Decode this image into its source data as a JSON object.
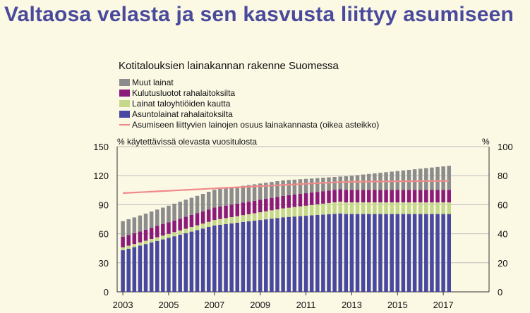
{
  "slide": {
    "title": "Valtaosa velasta ja sen kasvusta liittyy asumiseen"
  },
  "chart_data": {
    "type": "bar",
    "subtype": "stacked-bar-with-line",
    "title": "Kotitalouksien lainakannan rakenne Suomessa",
    "left_axis_label": "% käytettävissä olevasta vuositulosta",
    "right_axis_label": "%",
    "ylim_left": [
      0,
      150
    ],
    "yticks_left": [
      0,
      30,
      60,
      90,
      120,
      150
    ],
    "ylim_right": [
      0,
      100
    ],
    "yticks_right": [
      0,
      20,
      40,
      60,
      80,
      100
    ],
    "x_tick_labels": [
      "2003",
      "2005",
      "2007",
      "2009",
      "2011",
      "2013",
      "2015",
      "2017"
    ],
    "x_range": [
      2002.75,
      2019.0
    ],
    "grid": true,
    "legend_position": "top-left",
    "colors": {
      "asuntolainat": "#4848a0",
      "taloyhtio": "#c6d98a",
      "kulutus": "#8b1a7a",
      "muut": "#8c8c8c",
      "line": "#f08a8a",
      "grid": "#bdbdbd"
    },
    "legend": [
      {
        "label": "Muut lainat",
        "key": "muut"
      },
      {
        "label": "Kulutusluotot rahalaitoksilta",
        "key": "kulutus"
      },
      {
        "label": "Lainat taloyhtiöiden kautta",
        "key": "taloyhtio"
      },
      {
        "label": "Asuntolainat rahalaitoksilta",
        "key": "asuntolainat"
      },
      {
        "label": "Asumiseen liittyvien lainojen osuus lainakannasta (oikea asteikko)",
        "key": "line"
      }
    ],
    "x": [
      2003.0,
      2003.25,
      2003.5,
      2003.75,
      2004.0,
      2004.25,
      2004.5,
      2004.75,
      2005.0,
      2005.25,
      2005.5,
      2005.75,
      2006.0,
      2006.25,
      2006.5,
      2006.75,
      2007.0,
      2007.25,
      2007.5,
      2007.75,
      2008.0,
      2008.25,
      2008.5,
      2008.75,
      2009.0,
      2009.25,
      2009.5,
      2009.75,
      2010.0,
      2010.25,
      2010.5,
      2010.75,
      2011.0,
      2011.25,
      2011.5,
      2011.75,
      2012.0,
      2012.25,
      2012.5,
      2012.75,
      2013.0,
      2013.25,
      2013.5,
      2013.75,
      2014.0,
      2014.25,
      2014.5,
      2014.75,
      2015.0,
      2015.25,
      2015.5,
      2015.75,
      2016.0,
      2016.25,
      2016.5,
      2016.75,
      2017.0,
      2017.25
    ],
    "series": [
      {
        "key": "asuntolainat",
        "name": "Asuntolainat rahalaitoksilta",
        "values": [
          43.0,
          44.6,
          46.2,
          47.8,
          49.4,
          51.0,
          52.6,
          54.2,
          55.8,
          57.4,
          59.0,
          60.6,
          62.2,
          63.8,
          65.4,
          67.0,
          68.6,
          69.3,
          70.0,
          70.7,
          71.4,
          72.1,
          72.8,
          73.5,
          74.2,
          74.9,
          75.6,
          76.3,
          77.0,
          77.4,
          77.8,
          78.2,
          78.6,
          79.0,
          79.4,
          79.8,
          80.2,
          80.6,
          81.0,
          80.4,
          80.4,
          80.4,
          80.4,
          80.4,
          80.4,
          80.4,
          80.4,
          80.4,
          80.4,
          80.4,
          80.4,
          80.4,
          80.4,
          80.4,
          80.4,
          80.4,
          80.4,
          80.4
        ]
      },
      {
        "key": "taloyhtio",
        "name": "Lainat taloyhtiöiden kautta",
        "values": [
          3.0,
          3.1,
          3.2,
          3.3,
          3.4,
          3.6,
          3.8,
          3.9,
          4.1,
          4.3,
          4.4,
          4.6,
          4.8,
          4.9,
          5.1,
          5.3,
          5.6,
          5.9,
          6.2,
          6.5,
          6.8,
          7.1,
          7.4,
          7.7,
          8.0,
          8.3,
          8.6,
          8.9,
          9.2,
          9.5,
          9.8,
          10.1,
          10.4,
          10.7,
          11.0,
          11.3,
          11.6,
          11.9,
          12.2,
          12.0,
          12.0,
          12.0,
          12.0,
          12.0,
          12.0,
          12.0,
          12.0,
          12.0,
          12.0,
          12.0,
          12.0,
          12.0,
          12.0,
          12.0,
          12.0,
          12.0,
          12.0,
          12.0
        ]
      },
      {
        "key": "kulutus",
        "name": "Kulutusluotot rahalaitoksilta",
        "values": [
          11.0,
          11.1,
          11.2,
          11.3,
          11.4,
          11.6,
          11.7,
          11.8,
          11.9,
          12.0,
          12.2,
          12.3,
          12.4,
          12.5,
          12.6,
          12.8,
          12.9,
          12.9,
          12.9,
          12.9,
          12.9,
          12.9,
          12.9,
          12.9,
          12.9,
          12.9,
          12.9,
          12.9,
          12.9,
          12.9,
          12.9,
          12.9,
          12.9,
          12.9,
          12.9,
          12.9,
          12.9,
          12.9,
          12.9,
          13.0,
          13.0,
          13.0,
          13.0,
          13.0,
          13.0,
          13.0,
          13.0,
          13.0,
          13.0,
          13.0,
          13.0,
          13.0,
          13.0,
          13.0,
          13.0,
          13.0,
          13.0,
          13.0
        ]
      },
      {
        "key": "muut",
        "name": "Muut lainat",
        "values": [
          16.0,
          16.2,
          16.3,
          16.5,
          16.6,
          16.8,
          16.9,
          17.1,
          17.2,
          17.4,
          17.5,
          17.7,
          17.8,
          18.0,
          18.1,
          18.3,
          18.4,
          18.2,
          18.0,
          17.8,
          17.6,
          17.4,
          17.2,
          17.0,
          16.8,
          16.6,
          16.4,
          16.2,
          16.0,
          15.7,
          15.4,
          15.1,
          14.8,
          14.5,
          14.2,
          13.9,
          13.6,
          13.3,
          13.0,
          14.0,
          14.6,
          15.2,
          15.8,
          16.4,
          17.0,
          17.6,
          18.2,
          18.8,
          19.4,
          20.0,
          20.6,
          21.2,
          21.8,
          22.4,
          23.0,
          23.6,
          24.2,
          24.8
        ]
      }
    ],
    "line_series": {
      "key": "line",
      "name": "Asumiseen liittyvien lainojen osuus lainakannasta (oikea asteikko)",
      "axis": "right",
      "values": [
        68.0,
        68.2,
        68.4,
        68.6,
        68.8,
        69.0,
        69.2,
        69.4,
        69.6,
        69.8,
        70.0,
        70.2,
        70.4,
        70.6,
        70.8,
        71.0,
        71.2,
        71.4,
        71.6,
        71.8,
        72.0,
        72.2,
        72.4,
        72.6,
        72.8,
        73.0,
        73.2,
        73.4,
        73.6,
        73.8,
        74.0,
        74.2,
        74.4,
        74.6,
        74.8,
        75.0,
        75.2,
        75.4,
        75.6,
        75.7,
        75.8,
        75.8,
        75.9,
        75.9,
        76.0,
        76.0,
        76.0,
        76.1,
        76.1,
        76.1,
        76.2,
        76.2,
        76.2,
        76.3,
        76.3,
        76.3,
        76.4,
        76.4
      ]
    }
  }
}
